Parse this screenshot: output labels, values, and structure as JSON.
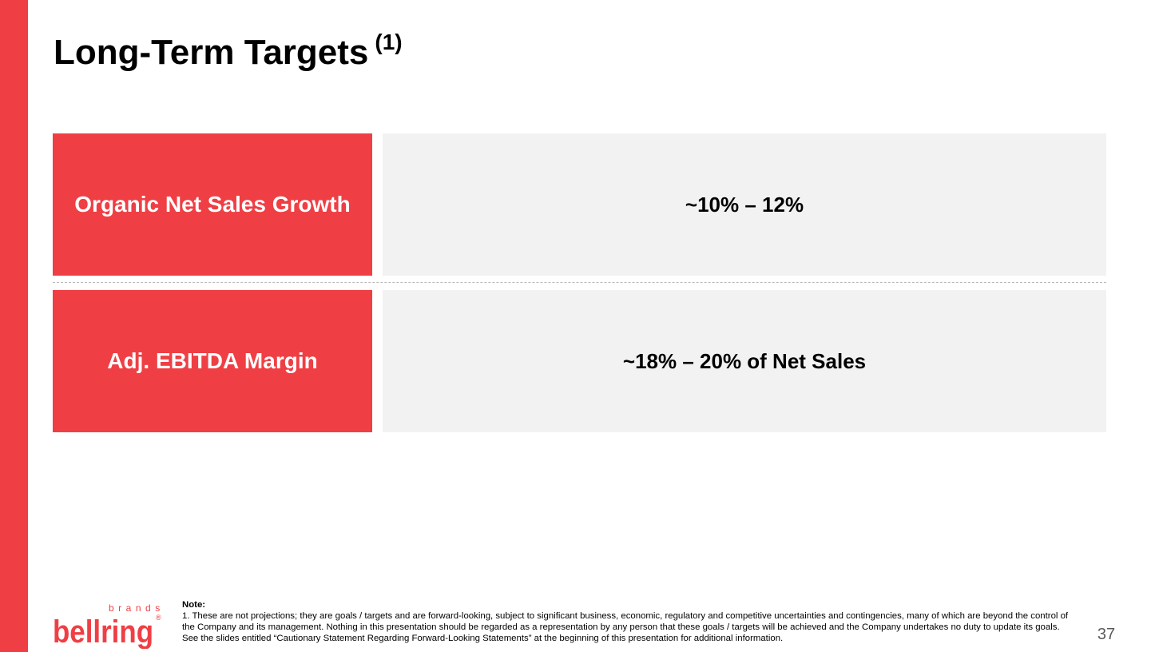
{
  "slide": {
    "title": "Long-Term Targets",
    "title_footnote": "(1)",
    "accent_color": "#ef3f44",
    "panel_color": "#f2f2f2"
  },
  "targets": [
    {
      "label": "Organic Net Sales Growth",
      "value": "~10% – 12%"
    },
    {
      "label": "Adj. EBITDA Margin",
      "value": "~18% – 20% of Net Sales"
    }
  ],
  "logo": {
    "brand_top": "brands",
    "brand_main": "bellring",
    "registered": "®"
  },
  "footnote": {
    "heading": "Note:",
    "text": "1. These are not projections; they are goals / targets and are forward-looking, subject to significant business, economic, regulatory and competitive uncertainties and contingencies, many of which are beyond the control of the Company and its management. Nothing in this presentation should be regarded as a representation by any person that these goals / targets will be achieved and the Company undertakes no duty to update its goals. See the slides entitled “Cautionary Statement Regarding Forward-Looking Statements” at the beginning of this presentation for additional information."
  },
  "page_number": "37"
}
